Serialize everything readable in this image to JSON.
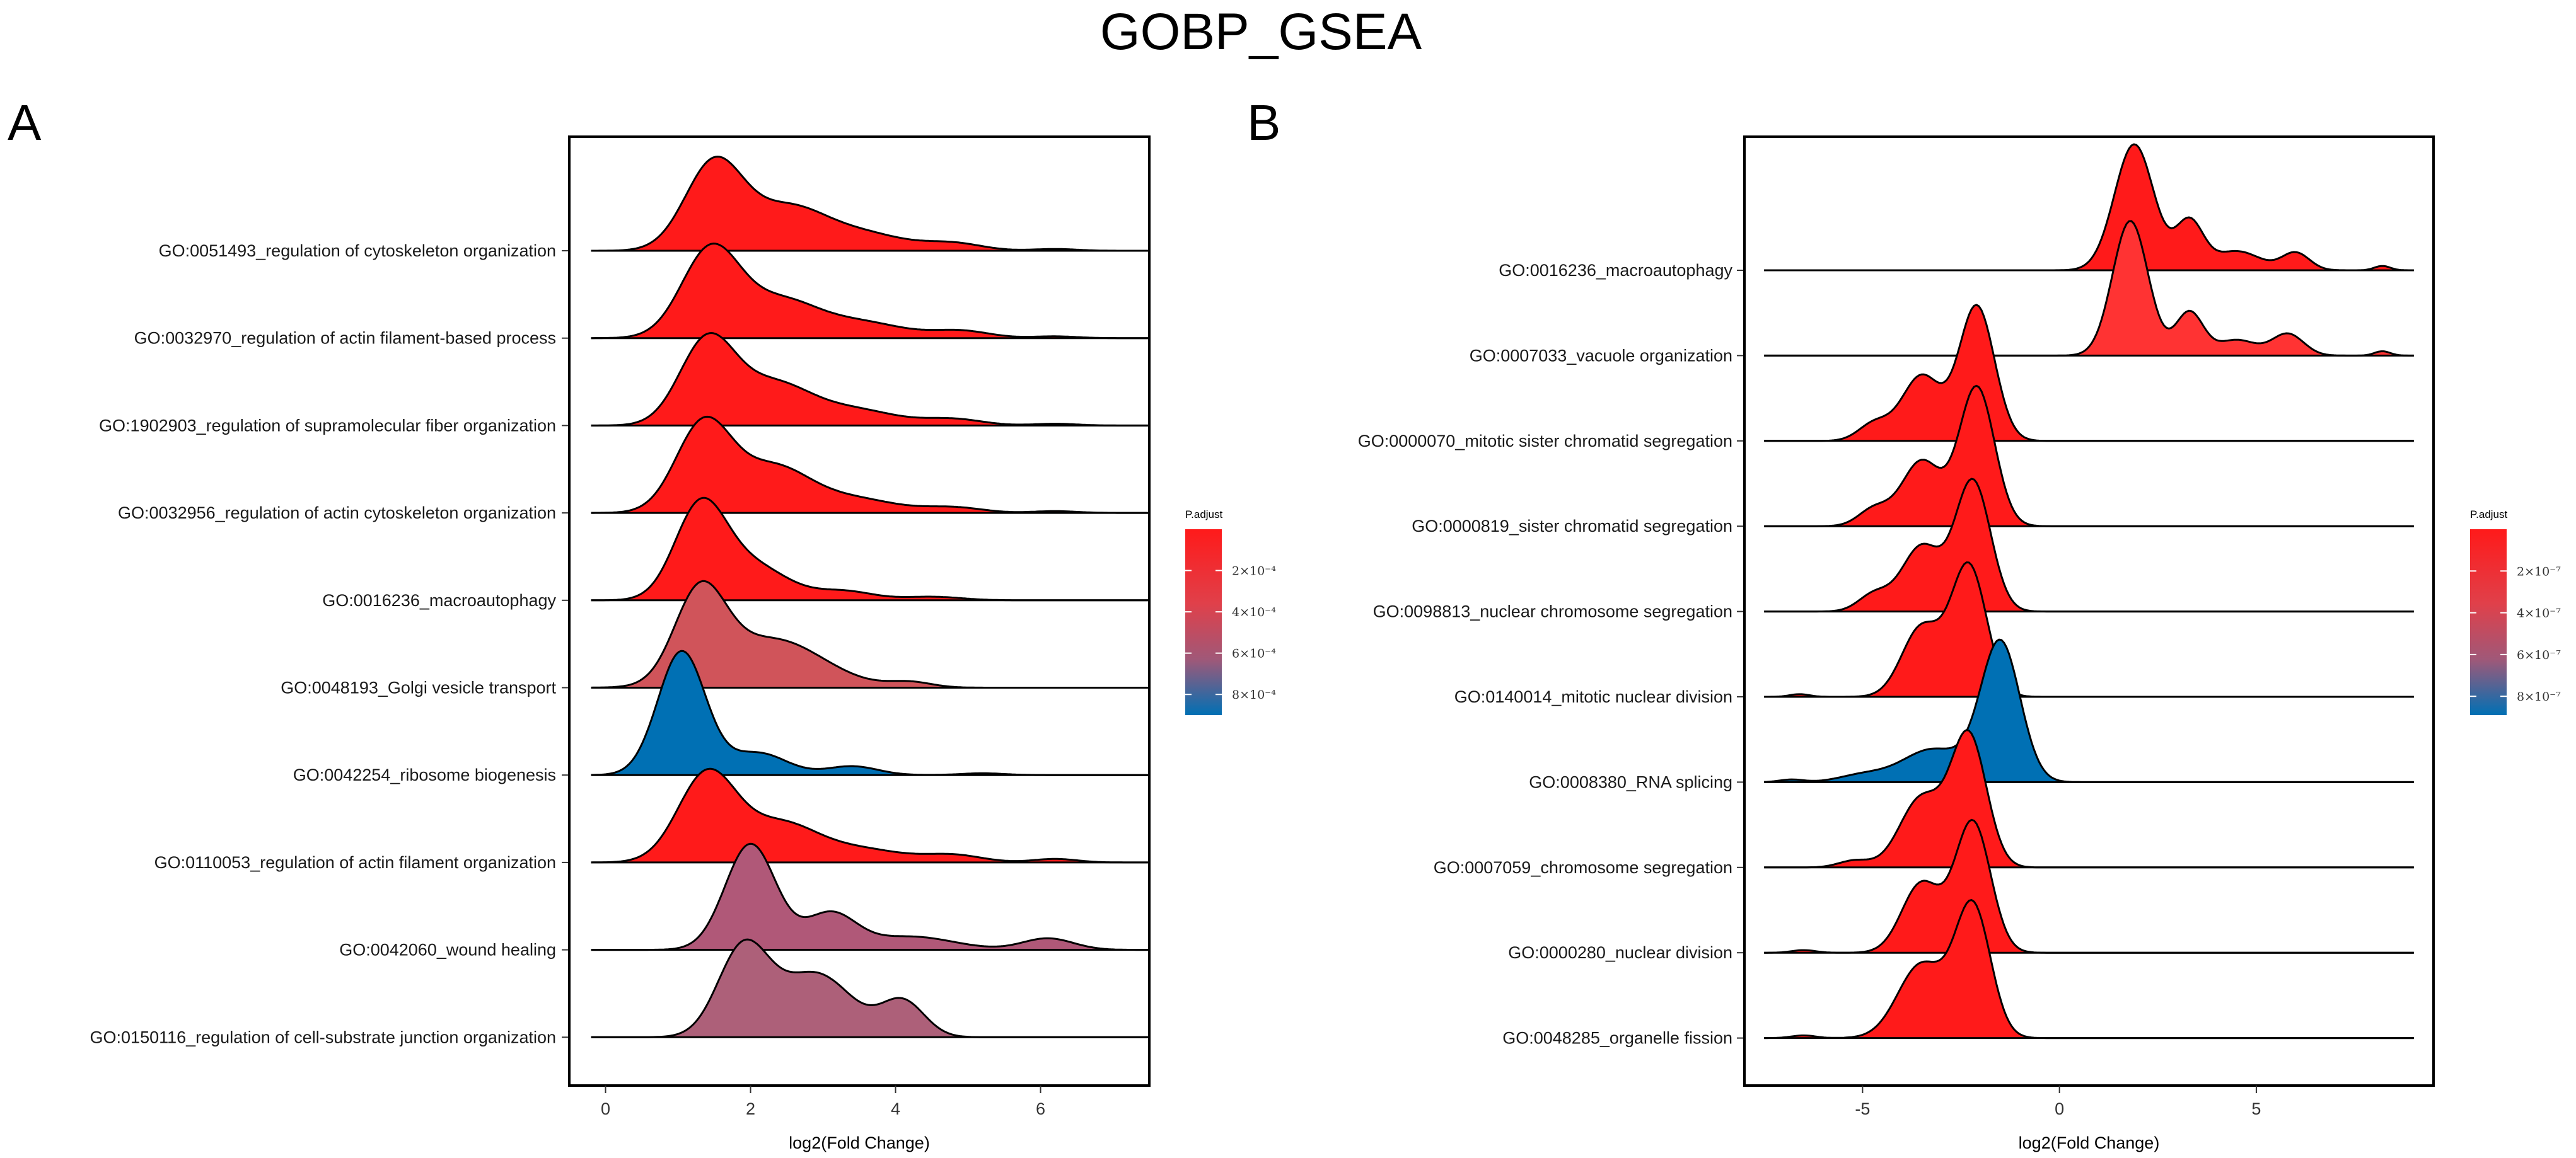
{
  "title": "GOBP_GSEA",
  "chart_data": [
    {
      "type": "ridgeline",
      "panel": "A",
      "xlabel": "log2(Fold Change)",
      "xlim": [
        -0.5,
        7.5
      ],
      "xticks": [
        0,
        2,
        4,
        6
      ],
      "xtick_labels": [
        "0",
        "2",
        "4",
        "6"
      ],
      "legend": {
        "title": "P.adjust",
        "placement": "right",
        "min": 0,
        "max": 0.0009,
        "ticks": [
          0.0002,
          0.0004,
          0.0006,
          0.0008
        ],
        "tick_labels": [
          "2×10⁻⁴",
          "4×10⁻⁴",
          "6×10⁻⁴",
          "8×10⁻⁴"
        ]
      },
      "series": [
        {
          "name": "GO:0051493_regulation of cytoskeleton organization",
          "p_adjust": 1e-05,
          "range": [
            -0.2,
            7.5
          ],
          "color": "#ff1a1a",
          "peaks": [
            [
              1.5,
              0.4,
              1.0
            ],
            [
              2.5,
              0.5,
              0.45
            ],
            [
              3.5,
              0.6,
              0.2
            ],
            [
              4.8,
              0.4,
              0.08
            ],
            [
              6.2,
              0.3,
              0.02
            ]
          ]
        },
        {
          "name": "GO:0032970_regulation of actin filament-based process",
          "p_adjust": 2e-05,
          "range": [
            -0.2,
            7.5
          ],
          "color": "#ff1a1a",
          "peaks": [
            [
              1.45,
              0.4,
              1.0
            ],
            [
              2.4,
              0.5,
              0.4
            ],
            [
              3.5,
              0.6,
              0.18
            ],
            [
              4.9,
              0.4,
              0.08
            ],
            [
              6.2,
              0.3,
              0.02
            ]
          ]
        },
        {
          "name": "GO:1902903_regulation of supramolecular fiber organization",
          "p_adjust": 2e-05,
          "range": [
            -0.2,
            7.5
          ],
          "color": "#ff1a1a",
          "peaks": [
            [
              1.4,
              0.38,
              0.95
            ],
            [
              2.3,
              0.5,
              0.45
            ],
            [
              3.4,
              0.6,
              0.18
            ],
            [
              4.8,
              0.4,
              0.07
            ],
            [
              6.2,
              0.3,
              0.02
            ]
          ]
        },
        {
          "name": "GO:0032956_regulation of actin cytoskeleton organization",
          "p_adjust": 3e-05,
          "range": [
            -0.2,
            7.5
          ],
          "color": "#ff1a1a",
          "peaks": [
            [
              1.35,
              0.38,
              1.0
            ],
            [
              2.3,
              0.5,
              0.5
            ],
            [
              3.4,
              0.6,
              0.16
            ],
            [
              4.8,
              0.4,
              0.06
            ],
            [
              6.2,
              0.3,
              0.02
            ]
          ]
        },
        {
          "name": "GO:0016236_macroautophagy",
          "p_adjust": 5e-05,
          "range": [
            -0.2,
            7.5
          ],
          "color": "#ff1a1a",
          "peaks": [
            [
              1.3,
              0.35,
              1.0
            ],
            [
              2.0,
              0.5,
              0.4
            ],
            [
              3.3,
              0.4,
              0.1
            ],
            [
              4.5,
              0.4,
              0.04
            ]
          ]
        },
        {
          "name": "GO:0048193_Golgi vesicle transport",
          "p_adjust": 0.00035,
          "range": [
            -0.2,
            7.5
          ],
          "color": "#d0545a",
          "peaks": [
            [
              1.3,
              0.35,
              1.0
            ],
            [
              2.3,
              0.7,
              0.55
            ],
            [
              4.2,
              0.3,
              0.06
            ]
          ]
        },
        {
          "name": "GO:0042254_ribosome biogenesis",
          "p_adjust": 0.00085,
          "range": [
            -0.2,
            7.5
          ],
          "color": "#0070b4",
          "peaks": [
            [
              1.05,
              0.33,
              1.4
            ],
            [
              2.1,
              0.4,
              0.25
            ],
            [
              3.4,
              0.35,
              0.1
            ],
            [
              5.2,
              0.3,
              0.02
            ]
          ]
        },
        {
          "name": "GO:0110053_regulation of actin filament organization",
          "p_adjust": 4e-05,
          "range": [
            -0.2,
            7.5
          ],
          "color": "#ff1a1a",
          "peaks": [
            [
              1.4,
              0.4,
              1.0
            ],
            [
              2.4,
              0.5,
              0.42
            ],
            [
              3.5,
              0.6,
              0.15
            ],
            [
              4.8,
              0.4,
              0.08
            ],
            [
              6.2,
              0.3,
              0.04
            ]
          ]
        },
        {
          "name": "GO:0042060_wound healing",
          "p_adjust": 0.0005,
          "range": [
            -0.2,
            7.5
          ],
          "color": "#b05878",
          "peaks": [
            [
              2.0,
              0.35,
              1.2
            ],
            [
              3.1,
              0.35,
              0.4
            ],
            [
              4.2,
              0.6,
              0.15
            ],
            [
              6.1,
              0.35,
              0.13
            ]
          ]
        },
        {
          "name": "GO:0150116_regulation of cell-substrate junction organization",
          "p_adjust": 0.0005,
          "range": [
            -0.2,
            7.5
          ],
          "color": "#ad6079",
          "peaks": [
            [
              1.9,
              0.35,
              1.0
            ],
            [
              2.9,
              0.5,
              0.72
            ],
            [
              4.1,
              0.3,
              0.4
            ]
          ]
        }
      ]
    },
    {
      "type": "ridgeline",
      "panel": "B",
      "xlabel": "log2(Fold Change)",
      "xlim": [
        -8,
        9.5
      ],
      "xticks": [
        -5,
        0,
        5
      ],
      "xtick_labels": [
        "-5",
        "0",
        "5"
      ],
      "legend": {
        "title": "P.adjust",
        "placement": "right",
        "min": 0,
        "max": 8.9e-07,
        "ticks": [
          2e-07,
          4e-07,
          6e-07,
          8e-07
        ],
        "tick_labels": [
          "2×10⁻⁷",
          "4×10⁻⁷",
          "6×10⁻⁷",
          "8×10⁻⁷"
        ]
      },
      "series": [
        {
          "name": "GO:0016236_macroautophagy",
          "p_adjust": 1e-08,
          "range": [
            -7.5,
            9.0
          ],
          "color": "#ff1a1a",
          "peaks": [
            [
              1.9,
              0.5,
              1.45
            ],
            [
              3.3,
              0.35,
              0.55
            ],
            [
              4.5,
              0.6,
              0.22
            ],
            [
              6.0,
              0.35,
              0.2
            ],
            [
              8.2,
              0.2,
              0.05
            ]
          ]
        },
        {
          "name": "GO:0007033_vacuole organization",
          "p_adjust": 5e-08,
          "range": [
            -7.5,
            9.0
          ],
          "color": "#ff3333",
          "peaks": [
            [
              1.8,
              0.45,
              1.55
            ],
            [
              3.3,
              0.35,
              0.5
            ],
            [
              4.5,
              0.5,
              0.18
            ],
            [
              5.8,
              0.4,
              0.25
            ],
            [
              8.2,
              0.2,
              0.05
            ]
          ]
        },
        {
          "name": "GO:0000070_mitotic sister chromatid segregation",
          "p_adjust": 1e-08,
          "range": [
            -7.5,
            9.0
          ],
          "color": "#ff1a1a",
          "peaks": [
            [
              -2.1,
              0.45,
              1.55
            ],
            [
              -3.5,
              0.5,
              0.75
            ],
            [
              -4.7,
              0.4,
              0.2
            ]
          ]
        },
        {
          "name": "GO:0000819_sister chromatid segregation",
          "p_adjust": 1e-08,
          "range": [
            -7.5,
            9.0
          ],
          "color": "#ff1a1a",
          "peaks": [
            [
              -2.1,
              0.45,
              1.6
            ],
            [
              -3.5,
              0.5,
              0.75
            ],
            [
              -4.7,
              0.4,
              0.2
            ]
          ]
        },
        {
          "name": "GO:0098813_nuclear chromosome segregation",
          "p_adjust": 1e-08,
          "range": [
            -7.5,
            9.0
          ],
          "color": "#ff1a1a",
          "peaks": [
            [
              -2.2,
              0.45,
              1.5
            ],
            [
              -3.5,
              0.5,
              0.75
            ],
            [
              -4.7,
              0.4,
              0.2
            ]
          ]
        },
        {
          "name": "GO:0140014_mitotic nuclear division",
          "p_adjust": 1e-08,
          "range": [
            -7.5,
            9.0
          ],
          "color": "#ff1a1a",
          "peaks": [
            [
              -2.3,
              0.45,
              1.5
            ],
            [
              -3.5,
              0.5,
              0.8
            ],
            [
              -6.6,
              0.25,
              0.03
            ]
          ]
        },
        {
          "name": "GO:0008380_RNA splicing",
          "p_adjust": 8.5e-07,
          "range": [
            -7.5,
            9.0
          ],
          "color": "#0070b4",
          "peaks": [
            [
              -1.5,
              0.5,
              1.6
            ],
            [
              -3.2,
              0.8,
              0.38
            ],
            [
              -5.0,
              0.6,
              0.08
            ],
            [
              -6.8,
              0.3,
              0.03
            ]
          ]
        },
        {
          "name": "GO:0007059_chromosome segregation",
          "p_adjust": 1e-08,
          "range": [
            -7.5,
            9.0
          ],
          "color": "#ff1a1a",
          "peaks": [
            [
              -2.3,
              0.45,
              1.5
            ],
            [
              -3.5,
              0.55,
              0.8
            ],
            [
              -5.2,
              0.4,
              0.08
            ]
          ]
        },
        {
          "name": "GO:0000280_nuclear division",
          "p_adjust": 1e-08,
          "range": [
            -7.5,
            9.0
          ],
          "color": "#ff1a1a",
          "peaks": [
            [
              -2.2,
              0.45,
              1.5
            ],
            [
              -3.5,
              0.5,
              0.8
            ],
            [
              -6.5,
              0.3,
              0.03
            ]
          ]
        },
        {
          "name": "GO:0048285_organelle fission",
          "p_adjust": 1e-08,
          "range": [
            -7.5,
            9.0
          ],
          "color": "#ff1a1a",
          "peaks": [
            [
              -2.2,
              0.45,
              1.5
            ],
            [
              -3.5,
              0.6,
              0.85
            ],
            [
              -6.5,
              0.3,
              0.03
            ]
          ]
        }
      ]
    }
  ]
}
